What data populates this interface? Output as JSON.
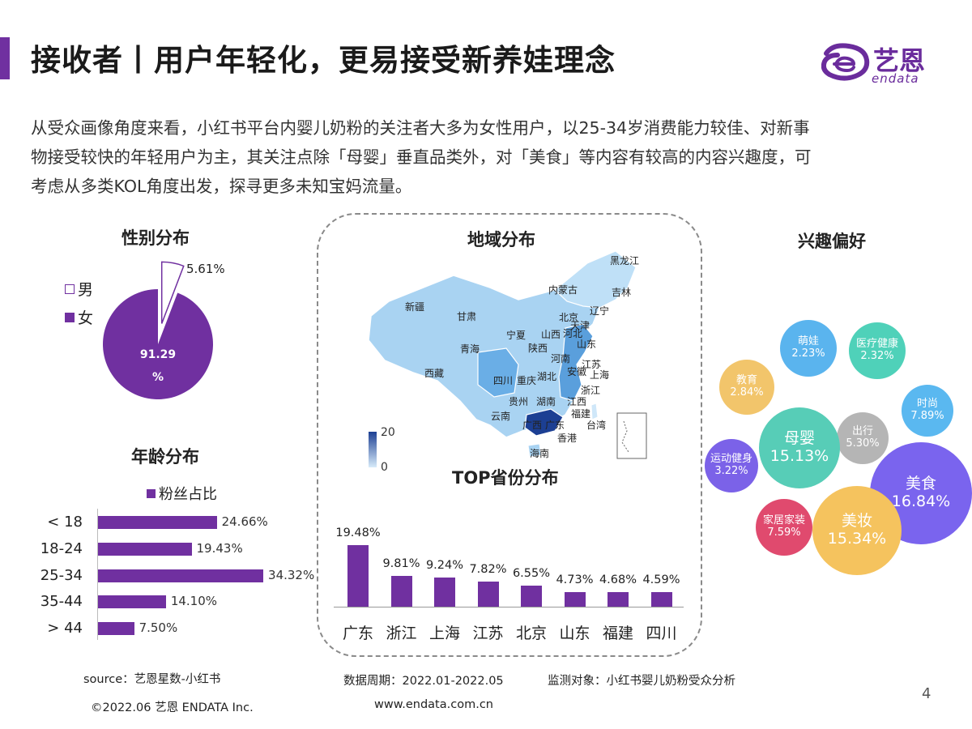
{
  "header": {
    "title": "接收者丨用户年轻化，更易接受新养娃理念",
    "logo_cn": "艺恩",
    "logo_en": "endata"
  },
  "intro": {
    "lines": [
      "从受众画像角度来看，小红书平台内婴儿奶粉的关注者大多为女性用户，以25-34岁消费能力较佳、对新事",
      "物接受较快的年轻用户为主，其关注点除「母婴」垂直品类外，对「美食」等内容有较高的内容兴趣度，可",
      "考虑从多类KOL角度出发，探寻更多未知宝妈流量。"
    ]
  },
  "colors": {
    "accent": "#7030a0",
    "map_dark": "#1c3f93",
    "map_light": "#d7ebfa"
  },
  "sections": {
    "gender": "性别分布",
    "age": "年龄分布",
    "region": "地域分布",
    "top_province": "TOP省份分布",
    "interest": "兴趣偏好"
  },
  "chart_data": [
    {
      "type": "pie",
      "title": "性别分布",
      "categories": [
        "男",
        "女"
      ],
      "values": [
        5.61,
        91.29
      ],
      "labels": [
        "5.61%",
        "91.29\n%"
      ],
      "legend_position": "left"
    },
    {
      "type": "bar",
      "title": "年龄分布",
      "orientation": "horizontal",
      "categories": [
        "< 18",
        "18-24",
        "25-34",
        "35-44",
        "> 44"
      ],
      "series": [
        {
          "name": "粉丝占比",
          "values": [
            24.66,
            19.43,
            34.32,
            14.1,
            7.5
          ]
        }
      ],
      "labels": [
        "24.66%",
        "19.43%",
        "34.32%",
        "14.10%",
        "7.50%"
      ],
      "xlim": [
        0,
        40
      ],
      "legend_position": "top"
    },
    {
      "type": "heatmap",
      "title": "地域分布",
      "scale_min": "0",
      "scale_max": "20",
      "regions": [
        "黑龙江",
        "吉林",
        "辽宁",
        "内蒙古",
        "北京",
        "天津",
        "河北",
        "山西",
        "山东",
        "宁夏",
        "甘肃",
        "新疆",
        "青海",
        "西藏",
        "陕西",
        "河南",
        "江苏",
        "安徽",
        "上海",
        "湖北",
        "四川",
        "重庆",
        "浙江",
        "贵州",
        "湖南",
        "江西",
        "福建",
        "云南",
        "广西",
        "广东",
        "香港",
        "台湾",
        "海南"
      ]
    },
    {
      "type": "bar",
      "title": "TOP省份分布",
      "categories": [
        "广东",
        "浙江",
        "上海",
        "江苏",
        "北京",
        "山东",
        "福建",
        "四川"
      ],
      "values": [
        19.48,
        9.81,
        9.24,
        7.82,
        6.55,
        4.73,
        4.68,
        4.59
      ],
      "labels": [
        "19.48%",
        "9.81%",
        "9.24%",
        "7.82%",
        "6.55%",
        "4.73%",
        "4.68%",
        "4.59%"
      ],
      "ylim": [
        0,
        22
      ]
    },
    {
      "type": "scatter",
      "subtype": "bubble",
      "title": "兴趣偏好",
      "categories": [
        "萌娃",
        "医疗健康",
        "教育",
        "时尚",
        "出行",
        "母婴",
        "运动健身",
        "美食",
        "家居家装",
        "美妆"
      ],
      "values": [
        2.23,
        2.32,
        2.84,
        7.89,
        5.3,
        15.13,
        3.22,
        16.84,
        7.59,
        15.34
      ],
      "labels": [
        "2.23%",
        "2.32%",
        "2.84%",
        "7.89%",
        "5.30%",
        "15.13%",
        "3.22%",
        "16.84%",
        "7.59%",
        "15.34%"
      ],
      "colors": [
        "#5ab4ee",
        "#4fd1b9",
        "#f2c56b",
        "#5ab8f0",
        "#b5b5b5",
        "#57cdb7",
        "#7b62e8",
        "#7a64ee",
        "#e04a6e",
        "#f5c35e"
      ]
    }
  ],
  "footer": {
    "source": "source：艺恩星数-小红书",
    "period": "数据周期：2022.01-2022.05",
    "object": "监测对象：小红书婴儿奶粉受众分析",
    "copyright": "©2022.06 艺恩 ENDATA Inc.",
    "website": "www.endata.com.cn",
    "page": "4"
  }
}
